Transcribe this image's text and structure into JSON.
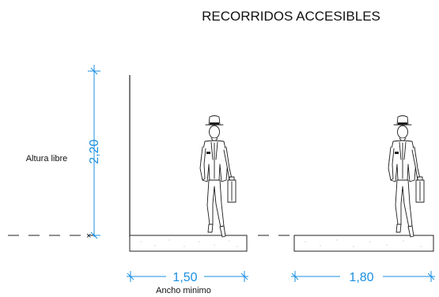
{
  "title": "RECORRIDOS ACCESIBLES",
  "height_label": "Altura libre",
  "height_value": "2,20",
  "width_min_value": "1,50",
  "width_min_caption": "Ancho minimo",
  "width_alt_value": "1,80",
  "colors": {
    "dimension": "#1a8fe0",
    "lines": "#222222"
  }
}
